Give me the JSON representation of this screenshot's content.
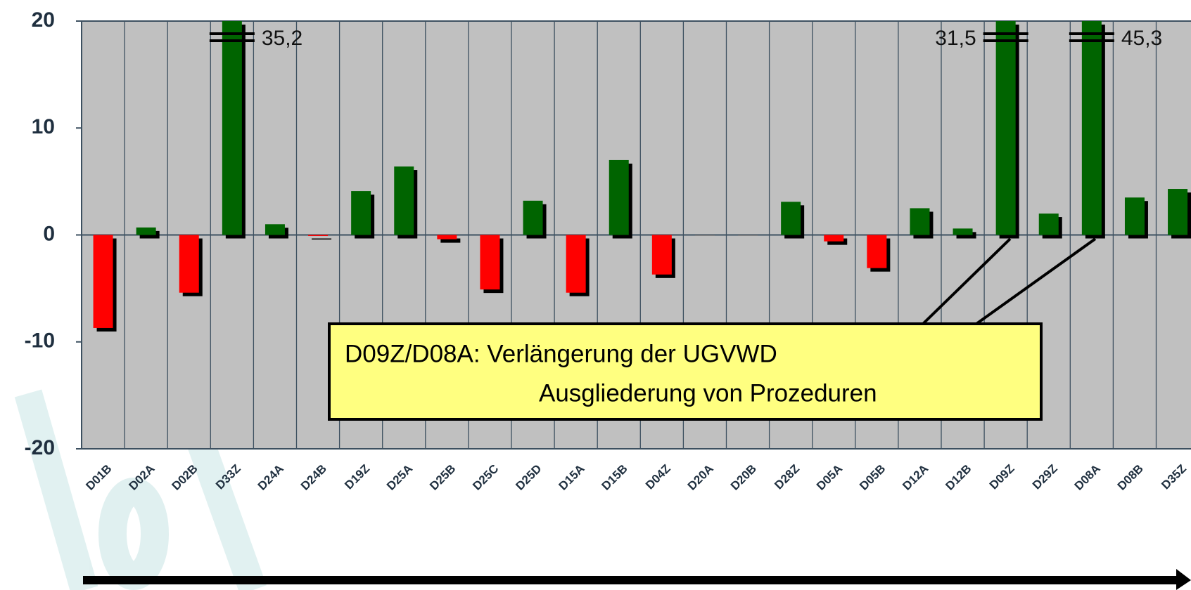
{
  "chart_data": {
    "type": "bar",
    "categories": [
      "D01B",
      "D02A",
      "D02B",
      "D33Z",
      "D24A",
      "D24B",
      "D19Z",
      "D25A",
      "D25B",
      "D25C",
      "D25D",
      "D15A",
      "D15B",
      "D04Z",
      "D20A",
      "D20B",
      "D28Z",
      "D05A",
      "D05B",
      "D12A",
      "D12B",
      "D09Z",
      "D29Z",
      "D08A",
      "D08B",
      "D35Z"
    ],
    "values": [
      -8.7,
      0.7,
      -5.4,
      35.2,
      1.0,
      -0.1,
      4.1,
      6.4,
      -0.4,
      -5.1,
      3.2,
      -5.4,
      7.0,
      -3.7,
      0,
      0,
      3.1,
      -0.6,
      -3.1,
      2.5,
      0.6,
      31.5,
      2.0,
      45.3,
      3.5,
      4.3
    ],
    "value_labels": [
      null,
      null,
      null,
      "35,2",
      null,
      null,
      null,
      null,
      null,
      null,
      null,
      null,
      null,
      null,
      null,
      null,
      null,
      null,
      null,
      null,
      null,
      "31,5",
      null,
      "45,3",
      null,
      null
    ],
    "positive_color": "#006400",
    "negative_color": "#ff0000",
    "ylim": [
      -20,
      20
    ],
    "yticks": [
      -20,
      -10,
      0,
      10,
      20
    ],
    "annotation": {
      "line1": "D09Z/D08A: Verlängerung der UGVWD",
      "line2": "Ausgliederung von Prozeduren"
    }
  }
}
